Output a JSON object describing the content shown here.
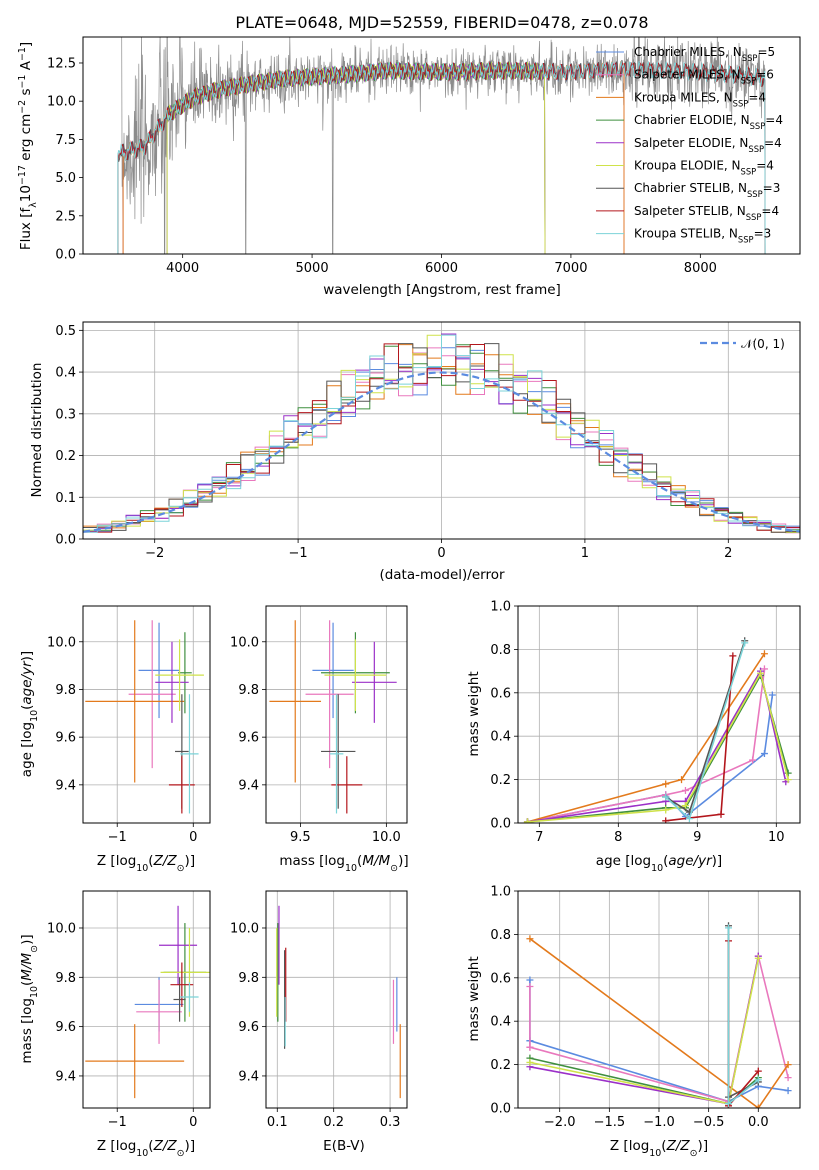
{
  "figure": {
    "title": "PLATE=0648, MJD=52559, FIBERID=0478, z=0.078"
  },
  "colors": {
    "Chabrier MILES": "#5b8be0",
    "Salpeter MILES": "#e978bd",
    "Kroupa MILES": "#e37a1c",
    "Chabrier ELODIE": "#3f8f3f",
    "Salpeter ELODIE": "#9b30c8",
    "Kroupa ELODIE": "#cfe24a",
    "Chabrier STELIB": "#555555",
    "Salpeter STELIB": "#b3161c",
    "Kroupa STELIB": "#7bd3d8",
    "data": "#8c8c8c",
    "gauss": "#5b8be0",
    "grid": "#b0b0b0"
  },
  "chart_data": [
    {
      "id": "spectrum",
      "type": "line",
      "title": "PLATE=0648, MJD=52559, FIBERID=0478, z=0.078",
      "xlabel": "wavelength [Angstrom, rest frame]",
      "ylabel": "Flux [fλ10⁻¹⁷ erg cm⁻² s⁻¹ A⁻¹]",
      "xlim": [
        3230,
        8770
      ],
      "ylim": [
        0,
        14.2
      ],
      "xticks": [
        4000,
        5000,
        6000,
        7000,
        8000
      ],
      "yticks": [
        0.0,
        2.5,
        5.0,
        7.5,
        10.0,
        12.5
      ],
      "grid": false,
      "legend_position": "top-right",
      "legend": [
        {
          "base": "Chabrier MILES",
          "n": "5"
        },
        {
          "base": "Salpeter MILES",
          "n": "6"
        },
        {
          "base": "Kroupa MILES",
          "n": "4"
        },
        {
          "base": "Chabrier ELODIE",
          "n": "4"
        },
        {
          "base": "Salpeter ELODIE",
          "n": "4"
        },
        {
          "base": "Kroupa ELODIE",
          "n": "4"
        },
        {
          "base": "Chabrier STELIB",
          "n": "3"
        },
        {
          "base": "Salpeter STELIB",
          "n": "4"
        },
        {
          "base": "Kroupa STELIB",
          "n": "3"
        }
      ],
      "continuum": {
        "x": [
          3530,
          3700,
          3900,
          4100,
          4300,
          4500,
          4800,
          5200,
          5600,
          6000,
          6500,
          7000,
          7400,
          7800,
          8200,
          8500
        ],
        "y": [
          6.6,
          7.0,
          9.2,
          10.3,
          10.8,
          11.1,
          11.5,
          11.7,
          12.0,
          11.9,
          12.0,
          11.9,
          12.1,
          12.0,
          11.8,
          11.5
        ]
      },
      "model_ranges": {
        "MILES": [
          3540,
          7410
        ],
        "ELODIE": [
          3880,
          6800
        ],
        "STELIB": [
          3500,
          8500
        ]
      }
    },
    {
      "id": "residuals",
      "type": "histogram",
      "xlabel": "(data-model)/error",
      "ylabel": "Normed distribution",
      "xlim": [
        -2.5,
        2.5
      ],
      "ylim": [
        0,
        0.52
      ],
      "xticks": [
        -2,
        -1,
        0,
        1,
        2
      ],
      "yticks": [
        0.0,
        0.1,
        0.2,
        0.3,
        0.4,
        0.5
      ],
      "grid": true,
      "legend_position": "top-right",
      "legend": "N(0,1)",
      "bin_width": 0.1
    },
    {
      "id": "age_vs_Z",
      "type": "errorbar",
      "xlabel": "Z [log10(Z/Z⊙)]",
      "ylabel": "age  [log10(age/yr)]",
      "xlim": [
        -1.45,
        0.22
      ],
      "ylim": [
        9.24,
        10.15
      ],
      "xticks": [
        -1,
        0
      ],
      "yticks": [
        9.4,
        9.6,
        9.8,
        10.0
      ],
      "grid": true,
      "points": [
        {
          "model": "Chabrier MILES",
          "x": -0.45,
          "xerr": 0.27,
          "y": 9.88,
          "yerr": 0.2
        },
        {
          "model": "Salpeter MILES",
          "x": -0.54,
          "xerr": 0.31,
          "y": 9.78,
          "yerr": 0.31
        },
        {
          "model": "Kroupa MILES",
          "x": -0.77,
          "xerr": 0.65,
          "y": 9.75,
          "yerr": 0.34
        },
        {
          "model": "Chabrier ELODIE",
          "x": -0.11,
          "xerr": 0.09,
          "y": 9.87,
          "yerr": 0.17
        },
        {
          "model": "Salpeter ELODIE",
          "x": -0.28,
          "xerr": 0.22,
          "y": 9.83,
          "yerr": 0.17
        },
        {
          "model": "Kroupa ELODIE",
          "x": -0.18,
          "xerr": 0.32,
          "y": 9.86,
          "yerr": 0.15
        },
        {
          "model": "Chabrier STELIB",
          "x": -0.15,
          "xerr": 0.09,
          "y": 9.54,
          "yerr": 0.24
        },
        {
          "model": "Salpeter STELIB",
          "x": -0.15,
          "xerr": 0.17,
          "y": 9.4,
          "yerr": 0.12
        },
        {
          "model": "Kroupa STELIB",
          "x": -0.05,
          "xerr": 0.12,
          "y": 9.53,
          "yerr": 0.25
        }
      ]
    },
    {
      "id": "age_vs_mass",
      "type": "errorbar",
      "xlabel": "mass [log10(M/M⊙)]",
      "ylabel": "",
      "xlim": [
        9.3,
        10.12
      ],
      "ylim": [
        9.24,
        10.15
      ],
      "xticks": [
        9.5,
        10.0
      ],
      "yticks": [
        9.4,
        9.6,
        9.8,
        10.0
      ],
      "grid": true,
      "points": [
        {
          "model": "Chabrier MILES",
          "x": 9.69,
          "xerr": 0.12,
          "y": 9.88,
          "yerr": 0.2
        },
        {
          "model": "Salpeter MILES",
          "x": 9.67,
          "xerr": 0.14,
          "y": 9.78,
          "yerr": 0.31
        },
        {
          "model": "Kroupa MILES",
          "x": 9.47,
          "xerr": 0.15,
          "y": 9.75,
          "yerr": 0.34
        },
        {
          "model": "Chabrier ELODIE",
          "x": 9.82,
          "xerr": 0.2,
          "y": 9.87,
          "yerr": 0.17
        },
        {
          "model": "Salpeter ELODIE",
          "x": 9.93,
          "xerr": 0.13,
          "y": 9.83,
          "yerr": 0.17
        },
        {
          "model": "Kroupa ELODIE",
          "x": 9.82,
          "xerr": 0.18,
          "y": 9.86,
          "yerr": 0.15
        },
        {
          "model": "Chabrier STELIB",
          "x": 9.72,
          "xerr": 0.1,
          "y": 9.54,
          "yerr": 0.24
        },
        {
          "model": "Salpeter STELIB",
          "x": 9.77,
          "xerr": 0.09,
          "y": 9.4,
          "yerr": 0.12
        },
        {
          "model": "Kroupa STELIB",
          "x": 9.71,
          "xerr": 0.04,
          "y": 9.53,
          "yerr": 0.25
        }
      ]
    },
    {
      "id": "massweight_vs_age",
      "type": "line",
      "xlabel": "age  [log10(age/yr)]",
      "ylabel": "mass weight",
      "xlim": [
        6.73,
        10.3
      ],
      "ylim": [
        0,
        1
      ],
      "xticks": [
        7,
        8,
        9,
        10
      ],
      "yticks": [
        0.0,
        0.2,
        0.4,
        0.6,
        0.8,
        1.0
      ],
      "grid": true,
      "series": [
        {
          "model": "Chabrier MILES",
          "x": [
            6.85,
            8.6,
            8.85,
            9.85,
            9.95
          ],
          "y": [
            0.005,
            0.13,
            0.03,
            0.32,
            0.59
          ]
        },
        {
          "model": "Salpeter MILES",
          "x": [
            6.85,
            8.6,
            8.85,
            9.7,
            9.85
          ],
          "y": [
            0.005,
            0.13,
            0.15,
            0.29,
            0.71
          ]
        },
        {
          "model": "Kroupa MILES",
          "x": [
            6.85,
            8.6,
            8.8,
            9.85
          ],
          "y": [
            0.005,
            0.18,
            0.2,
            0.78
          ]
        },
        {
          "model": "Chabrier ELODIE",
          "x": [
            6.85,
            8.6,
            8.85,
            9.8,
            10.15
          ],
          "y": [
            0.005,
            0.07,
            0.07,
            0.68,
            0.23
          ]
        },
        {
          "model": "Salpeter ELODIE",
          "x": [
            6.85,
            8.6,
            8.85,
            9.8,
            10.12
          ],
          "y": [
            0.005,
            0.1,
            0.1,
            0.7,
            0.19
          ]
        },
        {
          "model": "Kroupa ELODIE",
          "x": [
            6.85,
            8.6,
            8.85,
            9.8,
            10.15
          ],
          "y": [
            0.005,
            0.06,
            0.08,
            0.69,
            0.2
          ]
        },
        {
          "model": "Chabrier STELIB",
          "x": [
            8.6,
            8.9,
            9.6
          ],
          "y": [
            0.12,
            0.05,
            0.84
          ]
        },
        {
          "model": "Salpeter STELIB",
          "x": [
            8.6,
            9.3,
            9.45
          ],
          "y": [
            0.01,
            0.04,
            0.77
          ]
        },
        {
          "model": "Kroupa STELIB",
          "x": [
            8.6,
            8.9,
            9.6
          ],
          "y": [
            0.12,
            0.02,
            0.83
          ]
        }
      ]
    },
    {
      "id": "mass_vs_Z",
      "type": "errorbar",
      "xlabel": "Z [log10(Z/Z⊙)]",
      "ylabel": "mass [log10(M/M⊙)]",
      "xlim": [
        -1.45,
        0.22
      ],
      "ylim": [
        9.27,
        10.15
      ],
      "xticks": [
        -1,
        0
      ],
      "yticks": [
        9.4,
        9.6,
        9.8,
        10.0
      ],
      "grid": true,
      "points": [
        {
          "model": "Chabrier MILES",
          "x": -0.45,
          "xerr": 0.32,
          "y": 9.69,
          "yerr": 0.11
        },
        {
          "model": "Salpeter MILES",
          "x": -0.45,
          "xerr": 0.3,
          "y": 9.66,
          "yerr": 0.13
        },
        {
          "model": "Kroupa MILES",
          "x": -0.77,
          "xerr": 0.65,
          "y": 9.46,
          "yerr": 0.15
        },
        {
          "model": "Chabrier ELODIE",
          "x": -0.11,
          "xerr": 0.28,
          "y": 9.82,
          "yerr": 0.2
        },
        {
          "model": "Salpeter ELODIE",
          "x": -0.2,
          "xerr": 0.25,
          "y": 9.93,
          "yerr": 0.16
        },
        {
          "model": "Kroupa ELODIE",
          "x": -0.05,
          "xerr": 0.38,
          "y": 9.82,
          "yerr": 0.18
        },
        {
          "model": "Chabrier STELIB",
          "x": -0.18,
          "xerr": 0.08,
          "y": 9.71,
          "yerr": 0.09
        },
        {
          "model": "Salpeter STELIB",
          "x": -0.15,
          "xerr": 0.15,
          "y": 9.77,
          "yerr": 0.09
        },
        {
          "model": "Kroupa STELIB",
          "x": -0.05,
          "xerr": 0.12,
          "y": 9.72,
          "yerr": 0.06
        }
      ]
    },
    {
      "id": "mass_vs_ebv",
      "type": "errorbar",
      "xlabel": "E(B-V)",
      "ylabel": "",
      "xlim": [
        0.08,
        0.33
      ],
      "ylim": [
        9.27,
        10.15
      ],
      "xticks": [
        0.1,
        0.2,
        0.3
      ],
      "yticks": [
        9.4,
        9.6,
        9.8,
        10.0
      ],
      "grid": true,
      "points": [
        {
          "model": "Chabrier MILES",
          "x": 0.312,
          "xerr": 0.0,
          "y": 9.69,
          "yerr": 0.11
        },
        {
          "model": "Salpeter MILES",
          "x": 0.306,
          "xerr": 0.0,
          "y": 9.66,
          "yerr": 0.13
        },
        {
          "model": "Kroupa MILES",
          "x": 0.318,
          "xerr": 0.0,
          "y": 9.46,
          "yerr": 0.15
        },
        {
          "model": "Chabrier ELODIE",
          "x": 0.101,
          "xerr": 0.0,
          "y": 9.82,
          "yerr": 0.2
        },
        {
          "model": "Salpeter ELODIE",
          "x": 0.103,
          "xerr": 0.0,
          "y": 9.93,
          "yerr": 0.16
        },
        {
          "model": "Kroupa ELODIE",
          "x": 0.099,
          "xerr": 0.0,
          "y": 9.82,
          "yerr": 0.18
        },
        {
          "model": "Chabrier STELIB",
          "x": 0.113,
          "xerr": 0.0,
          "y": 9.71,
          "yerr": 0.2
        },
        {
          "model": "Salpeter STELIB",
          "x": 0.115,
          "xerr": 0.0,
          "y": 9.77,
          "yerr": 0.15
        },
        {
          "model": "Kroupa STELIB",
          "x": 0.114,
          "xerr": 0.0,
          "y": 9.62,
          "yerr": 0.1
        }
      ]
    },
    {
      "id": "massweight_vs_Z",
      "type": "line",
      "xlabel": "Z [log10(Z/Z⊙)]",
      "ylabel": "mass weight",
      "xlim": [
        -2.42,
        0.42
      ],
      "ylim": [
        0,
        1
      ],
      "xticks": [
        -2.0,
        -1.5,
        -1.0,
        -0.5,
        0.0
      ],
      "yticks": [
        0.0,
        0.2,
        0.4,
        0.6,
        0.8,
        1.0
      ],
      "grid": true,
      "series": [
        {
          "model": "Chabrier MILES",
          "x": [
            -2.3,
            -0.3,
            0.0,
            0.3
          ],
          "y": [
            0.31,
            0.03,
            0.1,
            0.08
          ]
        },
        {
          "model": "Chabrier MILES",
          "x": [
            -2.3,
            -2.3
          ],
          "y": [
            0.31,
            0.59
          ]
        },
        {
          "model": "Salpeter MILES",
          "x": [
            -2.3,
            -0.3,
            0.0,
            0.3
          ],
          "y": [
            0.28,
            0.03,
            0.7,
            0.14
          ]
        },
        {
          "model": "Salpeter MILES",
          "x": [
            -2.3,
            -2.3
          ],
          "y": [
            0.28,
            0.56
          ]
        },
        {
          "model": "Kroupa MILES",
          "x": [
            -2.3,
            0.0,
            0.3
          ],
          "y": [
            0.78,
            0.0,
            0.2
          ]
        },
        {
          "model": "Chabrier ELODIE",
          "x": [
            -2.3,
            -0.3,
            0.0
          ],
          "y": [
            0.23,
            0.02,
            0.14
          ]
        },
        {
          "model": "Salpeter ELODIE",
          "x": [
            -2.3,
            -0.3,
            0.0
          ],
          "y": [
            0.19,
            0.02,
            0.7
          ]
        },
        {
          "model": "Kroupa ELODIE",
          "x": [
            -2.3,
            -0.3,
            0.0
          ],
          "y": [
            0.21,
            0.02,
            0.69
          ]
        },
        {
          "model": "Chabrier STELIB",
          "x": [
            -0.3,
            -0.3,
            0.0
          ],
          "y": [
            0.84,
            0.05,
            0.12
          ]
        },
        {
          "model": "Salpeter STELIB",
          "x": [
            -0.3,
            -0.3,
            0.0
          ],
          "y": [
            0.77,
            0.01,
            0.17
          ]
        },
        {
          "model": "Kroupa STELIB",
          "x": [
            -0.3,
            -0.3,
            0.0
          ],
          "y": [
            0.83,
            0.02,
            0.13
          ]
        }
      ]
    }
  ]
}
